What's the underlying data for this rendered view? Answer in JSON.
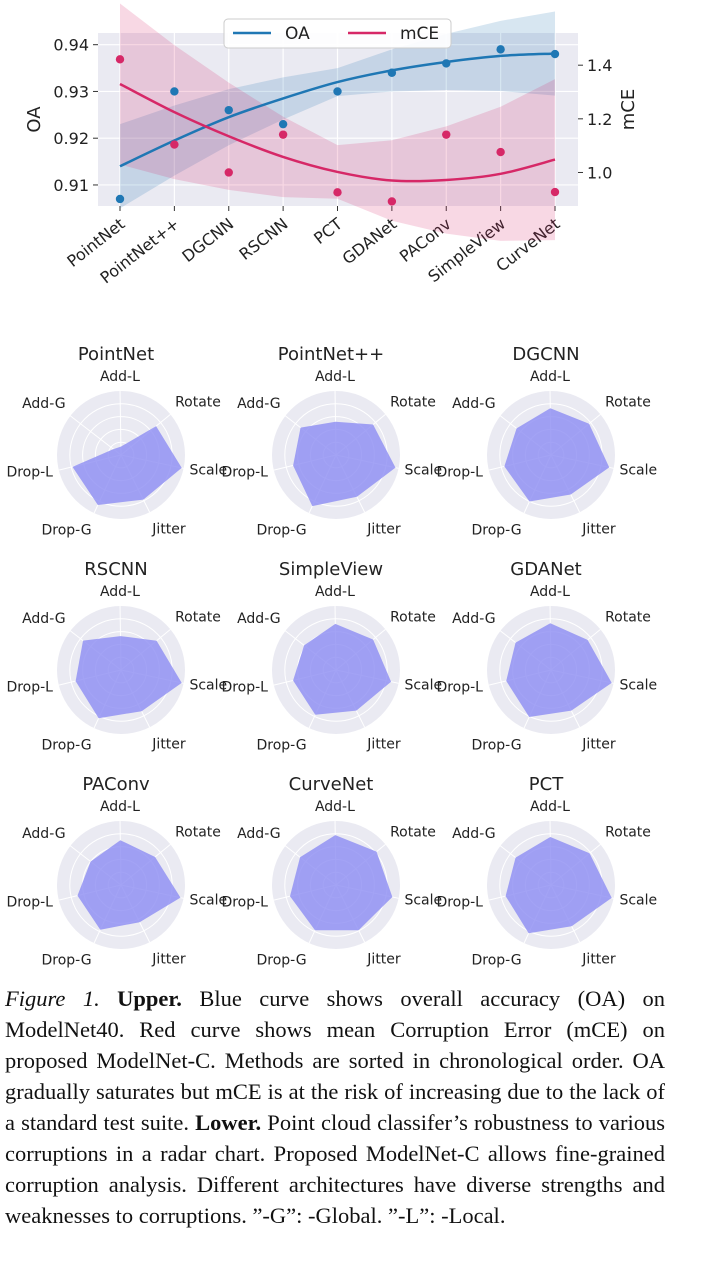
{
  "chart_data": [
    {
      "type": "line",
      "categories": [
        "PointNet",
        "PointNet++",
        "DGCNN",
        "RSCNN",
        "PCT",
        "GDANet",
        "PAConv",
        "SimpleView",
        "CurveNet"
      ],
      "ylabel": "OA",
      "y2label": "mCE",
      "ylim": [
        0.9055,
        0.9425
      ],
      "y2lim": [
        0.875,
        1.52
      ],
      "yticks": [
        "0.91",
        "0.92",
        "0.93",
        "0.94"
      ],
      "y2ticks": [
        "1.0",
        "1.2",
        "1.4"
      ],
      "grid": true,
      "legend_position": "top-center",
      "series": [
        {
          "name": "OA",
          "axis": "left",
          "color": "#1f77b4",
          "points": [
            0.907,
            0.93,
            0.926,
            0.923,
            0.93,
            0.934,
            0.936,
            0.939,
            0.938
          ],
          "fit": [
            0.914,
            0.9195,
            0.9245,
            0.9285,
            0.932,
            0.9345,
            0.9363,
            0.9376,
            0.9381
          ]
        },
        {
          "name": "mCE",
          "axis": "right",
          "color": "#d62867",
          "points": [
            1.422,
            1.104,
            1.0,
            1.141,
            0.926,
            0.892,
            1.141,
            1.076,
            0.927
          ],
          "fit": [
            1.33,
            1.225,
            1.135,
            1.058,
            1.002,
            0.97,
            0.972,
            0.995,
            1.048
          ]
        }
      ]
    },
    {
      "type": "radar",
      "axes": [
        "Scale",
        "Jitter",
        "Drop-G",
        "Drop-L",
        "Add-G",
        "Add-L",
        "Rotate"
      ],
      "fill_color": "#8c8cf2",
      "charts": [
        {
          "title": "PointNet",
          "values": [
            0.97,
            0.78,
            0.86,
            0.78,
            0.15,
            0.13,
            0.71
          ]
        },
        {
          "title": "PointNet++",
          "values": [
            0.95,
            0.73,
            0.88,
            0.69,
            0.7,
            0.52,
            0.75
          ]
        },
        {
          "title": "DGCNN",
          "values": [
            0.93,
            0.69,
            0.8,
            0.75,
            0.68,
            0.73,
            0.77
          ]
        },
        {
          "title": "RSCNN",
          "values": [
            0.97,
            0.72,
            0.83,
            0.73,
            0.75,
            0.53,
            0.72
          ]
        },
        {
          "title": "SimpleView",
          "values": [
            0.88,
            0.71,
            0.77,
            0.69,
            0.63,
            0.72,
            0.75
          ]
        },
        {
          "title": "GDANet",
          "values": [
            0.97,
            0.71,
            0.81,
            0.72,
            0.7,
            0.73,
            0.74
          ]
        },
        {
          "title": "PAConv",
          "values": [
            0.95,
            0.65,
            0.77,
            0.7,
            0.6,
            0.7,
            0.69
          ]
        },
        {
          "title": "CurveNet",
          "values": [
            0.9,
            0.79,
            0.78,
            0.74,
            0.71,
            0.78,
            0.82
          ]
        },
        {
          "title": "PCT",
          "values": [
            0.97,
            0.72,
            0.83,
            0.73,
            0.7,
            0.75,
            0.78
          ]
        }
      ]
    }
  ],
  "caption": {
    "figure_label": "Figure 1.",
    "upper_label": "Upper.",
    "upper_text": " Blue curve shows overall accuracy (OA) on ModelNet40. Red curve shows mean Corruption Error (mCE) on proposed ModelNet-C. Methods are sorted in chronological order. OA gradually saturates but mCE is at the risk of increasing due to the lack of a standard test suite.",
    "lower_label": "Lower.",
    "lower_text": " Point cloud classifer’s robustness to various corruptions in a radar chart. Proposed ModelNet-C allows fine-grained corruption analysis. Different architectures have diverse strengths and weaknesses to corruptions. ”-G”: -Global. ”-L”: -Local."
  }
}
